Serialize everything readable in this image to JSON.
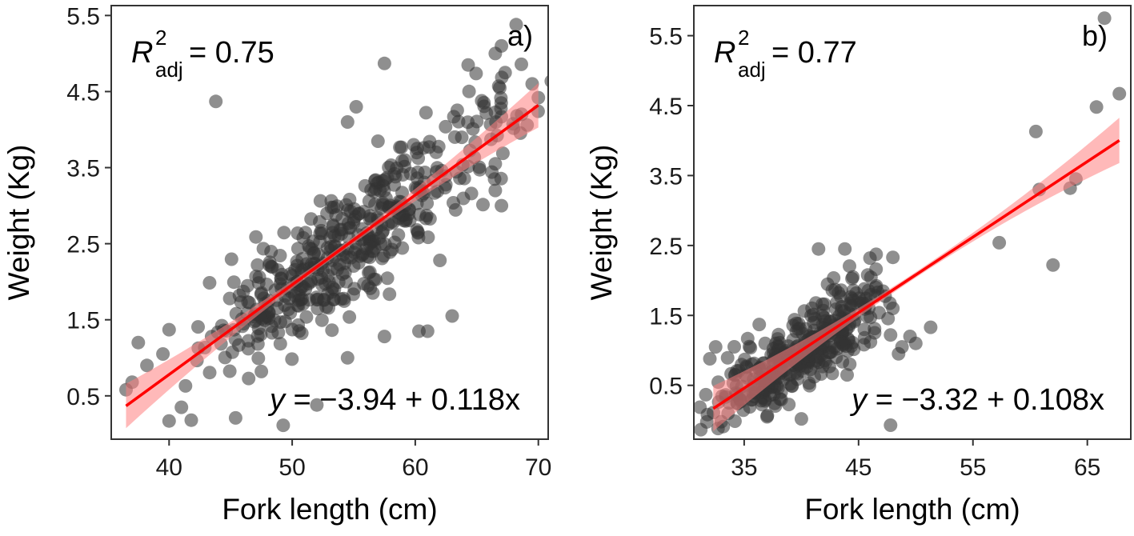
{
  "chart_data": [
    {
      "type": "scatter",
      "panel_label": "a)",
      "xlabel": "Fork length (cm)",
      "ylabel": "Weight (Kg)",
      "xlim": [
        35.3,
        70.8
      ],
      "ylim": [
        -0.07,
        5.63
      ],
      "xticks": [
        40,
        50,
        60,
        70
      ],
      "yticks": [
        0.5,
        1.5,
        2.5,
        3.5,
        4.5,
        5.5
      ],
      "xtick_labels": [
        "40",
        "50",
        "60",
        "70"
      ],
      "ytick_labels": [
        "0.5",
        "1.5",
        "2.5",
        "3.5",
        "4.5",
        "5.5"
      ],
      "grid": false,
      "r2_symbol": "R",
      "r2_superscript": "2",
      "r2_subscript": "adj",
      "r2_value_text": "= 0.75",
      "equation_y": "y",
      "equation_rest": " = −3.94 + 0.118x",
      "fit": {
        "intercept": -3.94,
        "slope": 0.118,
        "x_range": [
          36.5,
          70
        ],
        "color": "#ff0000",
        "band_color": "#ff8080"
      },
      "point_color": "#333333",
      "generator": {
        "seed": 12345,
        "n": 460,
        "x_min": 37,
        "x_max": 69.5,
        "x_mode": 57,
        "resid_sd": 0.42
      },
      "points": [
        [
          36.5,
          0.58
        ],
        [
          37.0,
          0.68
        ],
        [
          37.5,
          1.2
        ],
        [
          38.2,
          0.9
        ],
        [
          39.5,
          1.05
        ],
        [
          40,
          1.37
        ],
        [
          40,
          0.17
        ],
        [
          41.8,
          0.18
        ],
        [
          41.0,
          0.35
        ],
        [
          43.8,
          4.37
        ],
        [
          52,
          0.38
        ],
        [
          47.5,
          0.82
        ],
        [
          54.5,
          1.0
        ],
        [
          57.5,
          4.87
        ],
        [
          68.2,
          5.38
        ],
        [
          67.0,
          5.1
        ],
        [
          66.5,
          5.0
        ],
        [
          64.3,
          4.85
        ],
        [
          69.5,
          4.6
        ],
        [
          70,
          4.42
        ],
        [
          67.3,
          4.75
        ],
        [
          60.3,
          1.35
        ],
        [
          61.0,
          1.35
        ],
        [
          57.5,
          1.28
        ],
        [
          63.0,
          1.55
        ],
        [
          62.0,
          2.28
        ],
        [
          66.5,
          3.2
        ],
        [
          66.5,
          3.55
        ],
        [
          67.0,
          3.0
        ],
        [
          54.5,
          4.1
        ],
        [
          55.2,
          4.3
        ]
      ]
    },
    {
      "type": "scatter",
      "panel_label": "b)",
      "xlabel": "Fork length (cm)",
      "ylabel": "Weight (Kg)",
      "xlim": [
        30.6,
        68.8
      ],
      "ylim": [
        -0.27,
        5.93
      ],
      "xticks": [
        35,
        45,
        55,
        65
      ],
      "yticks": [
        0.5,
        1.5,
        2.5,
        3.5,
        4.5,
        5.5
      ],
      "xtick_labels": [
        "35",
        "45",
        "55",
        "65"
      ],
      "ytick_labels": [
        "0.5",
        "1.5",
        "2.5",
        "3.5",
        "4.5",
        "5.5"
      ],
      "grid": false,
      "r2_symbol": "R",
      "r2_superscript": "2",
      "r2_subscript": "adj",
      "r2_value_text": "= 0.77",
      "equation_y": "y",
      "equation_rest": " = −3.32 + 0.108x",
      "fit": {
        "intercept": -3.32,
        "slope": 0.108,
        "x_range": [
          32.3,
          67.8
        ],
        "color": "#ff0000",
        "band_color": "#ff8080"
      },
      "point_color": "#333333",
      "generator": {
        "seed": 777,
        "n": 360,
        "x_min": 32,
        "x_max": 50,
        "x_mode": 39,
        "resid_sd": 0.3
      },
      "points": [
        [
          66.5,
          5.75
        ],
        [
          67.8,
          4.67
        ],
        [
          65.8,
          4.48
        ],
        [
          60.5,
          4.13
        ],
        [
          64.0,
          3.45
        ],
        [
          63.5,
          3.32
        ],
        [
          60.8,
          3.3
        ],
        [
          57.3,
          2.54
        ],
        [
          62.0,
          2.22
        ],
        [
          51.3,
          1.33
        ],
        [
          50.0,
          1.1
        ],
        [
          49.5,
          1.2
        ],
        [
          48.8,
          1.05
        ],
        [
          48.5,
          0.95
        ],
        [
          48.0,
          1.6
        ],
        [
          47.8,
          1.22
        ],
        [
          48.0,
          2.33
        ],
        [
          47.8,
          -0.07
        ],
        [
          43.8,
          2.45
        ],
        [
          41.5,
          2.45
        ],
        [
          44.5,
          2.05
        ],
        [
          46.0,
          2.32
        ],
        [
          46.5,
          1.9
        ],
        [
          45.5,
          1.3
        ],
        [
          44.0,
          0.65
        ],
        [
          40,
          0.02
        ],
        [
          37,
          0.05
        ],
        [
          33,
          -0.02
        ],
        [
          32,
          0.88
        ],
        [
          32.5,
          1.05
        ]
      ]
    }
  ]
}
